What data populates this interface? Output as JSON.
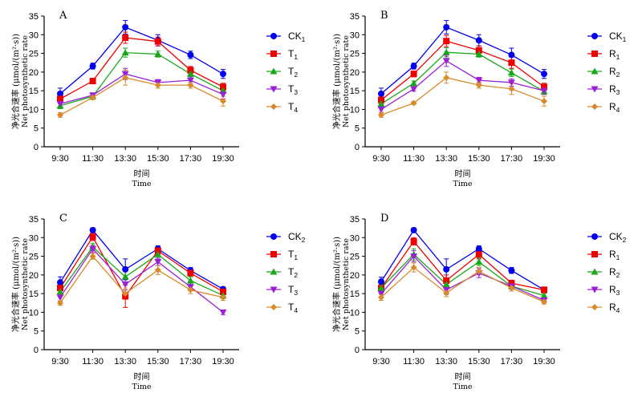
{
  "colors": {
    "CK": "#0000ee",
    "T1": "#ee0000",
    "T2": "#1aa81a",
    "T3": "#9b1fd6",
    "T4": "#d98a2b",
    "R1": "#ee0000",
    "R2": "#1aa81a",
    "R3": "#9b1fd6",
    "R4": "#d98a2b"
  },
  "chart_data": [
    {
      "type": "line",
      "panel": "A",
      "ylabel_cn": "净光合速率 (μmol/(m²·s))",
      "ylabel_en": "Net photosynthetic rate",
      "xlabel_cn": "时间",
      "xlabel_en": "Time",
      "ylim": [
        0,
        35
      ],
      "yticks": [
        "0",
        "5",
        "10",
        "15",
        "20",
        "25",
        "30",
        "35"
      ],
      "categories": [
        "9:30",
        "11:30",
        "13:30",
        "15:30",
        "17:30",
        "19:30"
      ],
      "legend_position": "right",
      "series": [
        {
          "name": "CK",
          "sub": "1",
          "color_key": "CK",
          "marker": "circle",
          "values": [
            14.2,
            21.6,
            32.0,
            28.5,
            24.6,
            19.5
          ],
          "errors": [
            1.5,
            0.8,
            1.8,
            1.5,
            1.0,
            1.2
          ]
        },
        {
          "name": "T",
          "sub": "1",
          "color_key": "T1",
          "marker": "square",
          "values": [
            12.8,
            17.6,
            29.2,
            28.2,
            20.5,
            16.0
          ],
          "errors": [
            1.2,
            0.5,
            1.5,
            1.2,
            1.0,
            1.0
          ]
        },
        {
          "name": "T",
          "sub": "2",
          "color_key": "T2",
          "marker": "triangle-up",
          "values": [
            11.0,
            13.5,
            25.2,
            24.8,
            19.5,
            15.0
          ],
          "errors": [
            0.8,
            0.6,
            1.2,
            0.8,
            1.0,
            0.8
          ]
        },
        {
          "name": "T",
          "sub": "3",
          "color_key": "T3",
          "marker": "triangle-down",
          "values": [
            11.5,
            13.8,
            19.5,
            17.2,
            17.8,
            14.0
          ],
          "errors": [
            0.8,
            0.6,
            1.5,
            0.8,
            1.0,
            1.2
          ]
        },
        {
          "name": "T",
          "sub": "4",
          "color_key": "T4",
          "marker": "diamond",
          "values": [
            8.5,
            13.2,
            18.5,
            16.5,
            16.5,
            12.2
          ],
          "errors": [
            0.6,
            0.6,
            2.0,
            0.8,
            0.8,
            1.3
          ]
        }
      ]
    },
    {
      "type": "line",
      "panel": "B",
      "ylabel_cn": "净光合速率 (μmol/(m²·s))",
      "ylabel_en": "Net photosynthetic rate",
      "xlabel_cn": "时间",
      "xlabel_en": "Time",
      "ylim": [
        0,
        35
      ],
      "yticks": [
        "0",
        "5",
        "10",
        "15",
        "20",
        "25",
        "30",
        "35"
      ],
      "categories": [
        "9:30",
        "11:30",
        "13:30",
        "15:30",
        "17:30",
        "19:30"
      ],
      "legend_position": "right",
      "series": [
        {
          "name": "CK",
          "sub": "1",
          "color_key": "CK",
          "marker": "circle",
          "values": [
            14.2,
            21.6,
            32.0,
            28.5,
            24.6,
            19.5
          ],
          "errors": [
            1.5,
            0.8,
            1.8,
            1.5,
            1.8,
            1.2
          ]
        },
        {
          "name": "R",
          "sub": "1",
          "color_key": "R1",
          "marker": "square",
          "values": [
            12.5,
            19.5,
            28.3,
            25.8,
            22.5,
            16.0
          ],
          "errors": [
            1.0,
            0.8,
            1.5,
            1.2,
            1.5,
            1.0
          ]
        },
        {
          "name": "R",
          "sub": "2",
          "color_key": "R2",
          "marker": "triangle-up",
          "values": [
            11.5,
            17.0,
            25.3,
            24.8,
            19.8,
            14.8
          ],
          "errors": [
            0.8,
            0.6,
            1.2,
            0.8,
            1.0,
            0.8
          ]
        },
        {
          "name": "R",
          "sub": "3",
          "color_key": "R3",
          "marker": "triangle-down",
          "values": [
            10.0,
            15.5,
            23.0,
            17.8,
            17.2,
            15.0
          ],
          "errors": [
            0.8,
            0.6,
            1.5,
            0.8,
            1.0,
            1.0
          ]
        },
        {
          "name": "R",
          "sub": "4",
          "color_key": "R4",
          "marker": "diamond",
          "values": [
            8.5,
            11.7,
            18.5,
            16.5,
            15.5,
            12.2
          ],
          "errors": [
            0.6,
            0.4,
            1.5,
            0.8,
            1.5,
            1.3
          ]
        }
      ]
    },
    {
      "type": "line",
      "panel": "C",
      "ylabel_cn": "净光合速率 (μmol/(m²·s))",
      "ylabel_en": "Net photosynthetic rate",
      "xlabel_cn": "时间",
      "xlabel_en": "Time",
      "ylim": [
        0,
        35
      ],
      "yticks": [
        "0",
        "5",
        "10",
        "15",
        "20",
        "25",
        "30",
        "35"
      ],
      "categories": [
        "9:30",
        "11:30",
        "13:30",
        "15:30",
        "17:30",
        "19:30"
      ],
      "legend_position": "right",
      "series": [
        {
          "name": "CK",
          "sub": "2",
          "color_key": "CK",
          "marker": "circle",
          "values": [
            18.0,
            32.0,
            21.5,
            27.0,
            21.2,
            16.2
          ],
          "errors": [
            1.5,
            0.6,
            2.8,
            0.8,
            0.8,
            0.6
          ]
        },
        {
          "name": "T",
          "sub": "1",
          "color_key": "T1",
          "marker": "square",
          "values": [
            16.5,
            30.2,
            14.3,
            26.5,
            20.5,
            15.5
          ],
          "errors": [
            1.5,
            1.0,
            3.0,
            1.0,
            0.8,
            0.8
          ]
        },
        {
          "name": "T",
          "sub": "2",
          "color_key": "T2",
          "marker": "triangle-up",
          "values": [
            15.5,
            27.5,
            19.5,
            25.5,
            18.5,
            14.5
          ],
          "errors": [
            1.0,
            1.0,
            1.5,
            1.0,
            1.0,
            0.8
          ]
        },
        {
          "name": "T",
          "sub": "3",
          "color_key": "T3",
          "marker": "triangle-down",
          "values": [
            14.0,
            27.0,
            17.5,
            23.5,
            16.8,
            10.0
          ],
          "errors": [
            1.0,
            1.0,
            1.5,
            1.0,
            1.0,
            0.6
          ]
        },
        {
          "name": "T",
          "sub": "4",
          "color_key": "T4",
          "marker": "diamond",
          "values": [
            12.5,
            25.0,
            15.0,
            21.3,
            16.0,
            14.0
          ],
          "errors": [
            0.6,
            0.8,
            1.5,
            1.2,
            1.0,
            0.8
          ]
        }
      ]
    },
    {
      "type": "line",
      "panel": "D",
      "ylabel_cn": "净光合速率 (μmol/(m²·s))",
      "ylabel_en": "Net photosynthetic rate",
      "xlabel_cn": "时间",
      "xlabel_en": "Time",
      "ylim": [
        0,
        35
      ],
      "yticks": [
        "0",
        "5",
        "10",
        "15",
        "20",
        "25",
        "30",
        "35"
      ],
      "categories": [
        "9:30",
        "11:30",
        "13:30",
        "15:30",
        "17:30",
        "19:30"
      ],
      "legend_position": "right",
      "series": [
        {
          "name": "CK",
          "sub": "2",
          "color_key": "CK",
          "marker": "circle",
          "values": [
            18.2,
            32.0,
            21.5,
            27.0,
            21.2,
            16.0
          ],
          "errors": [
            1.2,
            0.6,
            2.8,
            0.8,
            0.8,
            0.6
          ]
        },
        {
          "name": "R",
          "sub": "1",
          "color_key": "R1",
          "marker": "square",
          "values": [
            16.5,
            29.0,
            18.5,
            25.5,
            17.8,
            16.0
          ],
          "errors": [
            1.0,
            1.0,
            1.5,
            1.2,
            0.8,
            0.8
          ]
        },
        {
          "name": "R",
          "sub": "2",
          "color_key": "R2",
          "marker": "triangle-up",
          "values": [
            16.5,
            25.5,
            17.5,
            23.5,
            17.0,
            14.5
          ],
          "errors": [
            1.0,
            1.5,
            1.2,
            1.0,
            0.8,
            0.6
          ]
        },
        {
          "name": "R",
          "sub": "3",
          "color_key": "R3",
          "marker": "triangle-down",
          "values": [
            15.0,
            25.0,
            16.0,
            20.5,
            17.0,
            13.2
          ],
          "errors": [
            1.0,
            1.5,
            1.2,
            1.2,
            0.8,
            0.6
          ]
        },
        {
          "name": "R",
          "sub": "4",
          "color_key": "R4",
          "marker": "diamond",
          "values": [
            14.0,
            22.0,
            15.2,
            21.0,
            16.5,
            12.8
          ],
          "errors": [
            0.8,
            1.2,
            1.0,
            1.0,
            0.8,
            0.6
          ]
        }
      ]
    }
  ]
}
